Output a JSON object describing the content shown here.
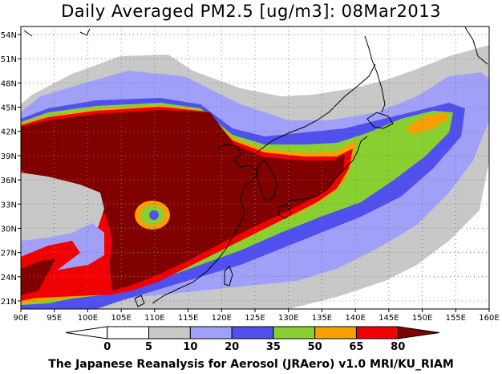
{
  "title": "Daily Averaged PM2.5 [ug/m3]: 08Mar2013",
  "credit": "The Japanese Reanalysis for Aerosol (JRAero) v1.0 MRI/KU_RIAM",
  "map": {
    "lon_labels": [
      "90E",
      "95E",
      "100E",
      "105E",
      "110E",
      "115E",
      "120E",
      "125E",
      "130E",
      "135E",
      "140E",
      "145E",
      "150E",
      "155E",
      "160E"
    ],
    "lat_labels": [
      "54N",
      "51N",
      "48N",
      "45N",
      "42N",
      "39N",
      "36N",
      "33N",
      "30N",
      "27N",
      "24N",
      "21N"
    ],
    "lon_range": [
      90,
      160
    ],
    "lat_range": [
      20,
      55
    ],
    "grid": "dotted"
  },
  "colorbar": {
    "levels": [
      "0",
      "5",
      "10",
      "20",
      "35",
      "50",
      "65",
      "80"
    ],
    "colors": [
      "#ffffff",
      "#ffffff",
      "#c8c8c8",
      "#a0a0f8",
      "#5050ee",
      "#88d030",
      "#f8a000",
      "#f00000",
      "#800000"
    ],
    "arrow_left_color": "#ffffff",
    "arrow_right_color": "#800000"
  },
  "palette": {
    "c5": "#c8c8c8",
    "c10": "#a0a0f8",
    "c20": "#5050ee",
    "c35": "#88d030",
    "c50": "#f8a000",
    "c65": "#f00000",
    "c80": "#800000"
  }
}
